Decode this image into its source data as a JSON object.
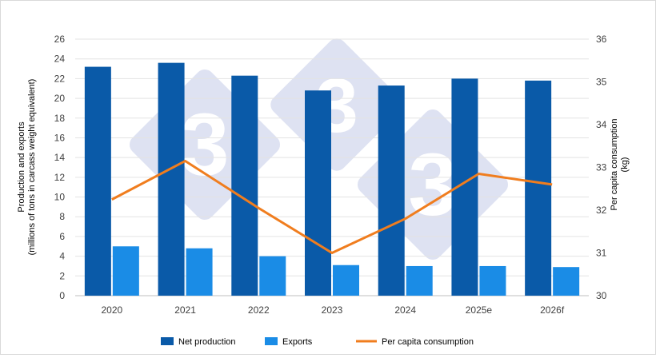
{
  "chart_data": {
    "type": "bar",
    "categories": [
      "2020",
      "2021",
      "2022",
      "2023",
      "2024",
      "2025e",
      "2026f"
    ],
    "series": [
      {
        "name": "Net production",
        "kind": "bar",
        "axis": "left",
        "color": "#0a5aa8",
        "values": [
          23.2,
          23.6,
          22.3,
          20.8,
          21.3,
          22.0,
          21.8
        ]
      },
      {
        "name": "Exports",
        "kind": "bar",
        "axis": "left",
        "color": "#1a8ce6",
        "values": [
          5.0,
          4.8,
          4.0,
          3.1,
          3.0,
          3.0,
          2.9
        ]
      },
      {
        "name": "Per capita consumption",
        "kind": "line",
        "axis": "right",
        "color": "#f07d1e",
        "values": [
          32.25,
          33.15,
          32.05,
          31.0,
          31.8,
          32.85,
          32.6
        ]
      }
    ],
    "ylabel_left_line1": "Production and exports",
    "ylabel_left_line2": "(millions of tons in carcass weight equivalent)",
    "ylabel_right_line1": "Per capita consumption",
    "ylabel_right_line2": "(kg)",
    "ylim_left": [
      0,
      26
    ],
    "yticks_left": [
      0,
      2,
      4,
      6,
      8,
      10,
      12,
      14,
      16,
      18,
      20,
      22,
      24,
      26
    ],
    "ylim_right": [
      30,
      36
    ],
    "yticks_right": [
      30,
      31,
      32,
      33,
      34,
      35,
      36
    ],
    "grid": true,
    "legend_position": "bottom",
    "watermark": "333"
  }
}
